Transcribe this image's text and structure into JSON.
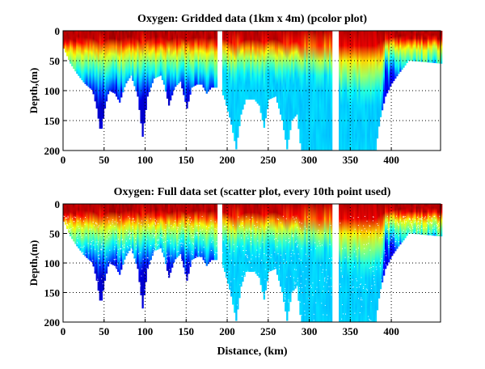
{
  "chart_data": [
    {
      "type": "heatmap",
      "title": "Oxygen: Gridded data (1km x 4m) (pcolor plot)",
      "xlabel": "",
      "ylabel": "Depth,(m)",
      "xlim": [
        0,
        460
      ],
      "ylim": [
        200,
        0
      ],
      "xticks": [
        0,
        50,
        100,
        150,
        200,
        250,
        300,
        350,
        400
      ],
      "yticks": [
        0,
        50,
        100,
        150,
        200
      ],
      "grid": true,
      "colormap": "jet",
      "bottom_depth_profile": [
        [
          0,
          30
        ],
        [
          8,
          55
        ],
        [
          15,
          70
        ],
        [
          25,
          88
        ],
        [
          35,
          100
        ],
        [
          40,
          130
        ],
        [
          45,
          172
        ],
        [
          50,
          130
        ],
        [
          55,
          100
        ],
        [
          62,
          105
        ],
        [
          68,
          120
        ],
        [
          75,
          90
        ],
        [
          82,
          75
        ],
        [
          90,
          110
        ],
        [
          96,
          177
        ],
        [
          102,
          110
        ],
        [
          110,
          80
        ],
        [
          118,
          75
        ],
        [
          122,
          90
        ],
        [
          128,
          125
        ],
        [
          135,
          95
        ],
        [
          142,
          85
        ],
        [
          150,
          130
        ],
        [
          156,
          95
        ],
        [
          162,
          90
        ],
        [
          168,
          90
        ],
        [
          174,
          105
        ],
        [
          180,
          95
        ],
        [
          188,
          95
        ],
        [
          195,
          110
        ],
        [
          203,
          150
        ],
        [
          210,
          198
        ],
        [
          216,
          140
        ],
        [
          222,
          115
        ],
        [
          232,
          115
        ],
        [
          238,
          125
        ],
        [
          244,
          162
        ],
        [
          250,
          115
        ],
        [
          258,
          110
        ],
        [
          266,
          150
        ],
        [
          272,
          198
        ],
        [
          278,
          150
        ],
        [
          284,
          140
        ],
        [
          289,
          200
        ],
        [
          328,
          200
        ],
        [
          335,
          200
        ],
        [
          380,
          200
        ],
        [
          385,
          150
        ],
        [
          392,
          110
        ],
        [
          400,
          88
        ],
        [
          408,
          72
        ],
        [
          415,
          60
        ],
        [
          420,
          50
        ],
        [
          460,
          55
        ]
      ],
      "data_gaps_km": [
        [
          189,
          192
        ],
        [
          328,
          334
        ]
      ]
    },
    {
      "type": "scatter",
      "title": "Oxygen: Full data set (scatter plot, every 10th point used)",
      "xlabel": "Distance, (km)",
      "ylabel": "Depth,(m)",
      "xlim": [
        0,
        460
      ],
      "ylim": [
        200,
        0
      ],
      "xticks": [
        0,
        50,
        100,
        150,
        200,
        250,
        300,
        350,
        400
      ],
      "yticks": [
        0,
        50,
        100,
        150,
        200
      ],
      "grid": true,
      "colormap": "jet"
    }
  ]
}
